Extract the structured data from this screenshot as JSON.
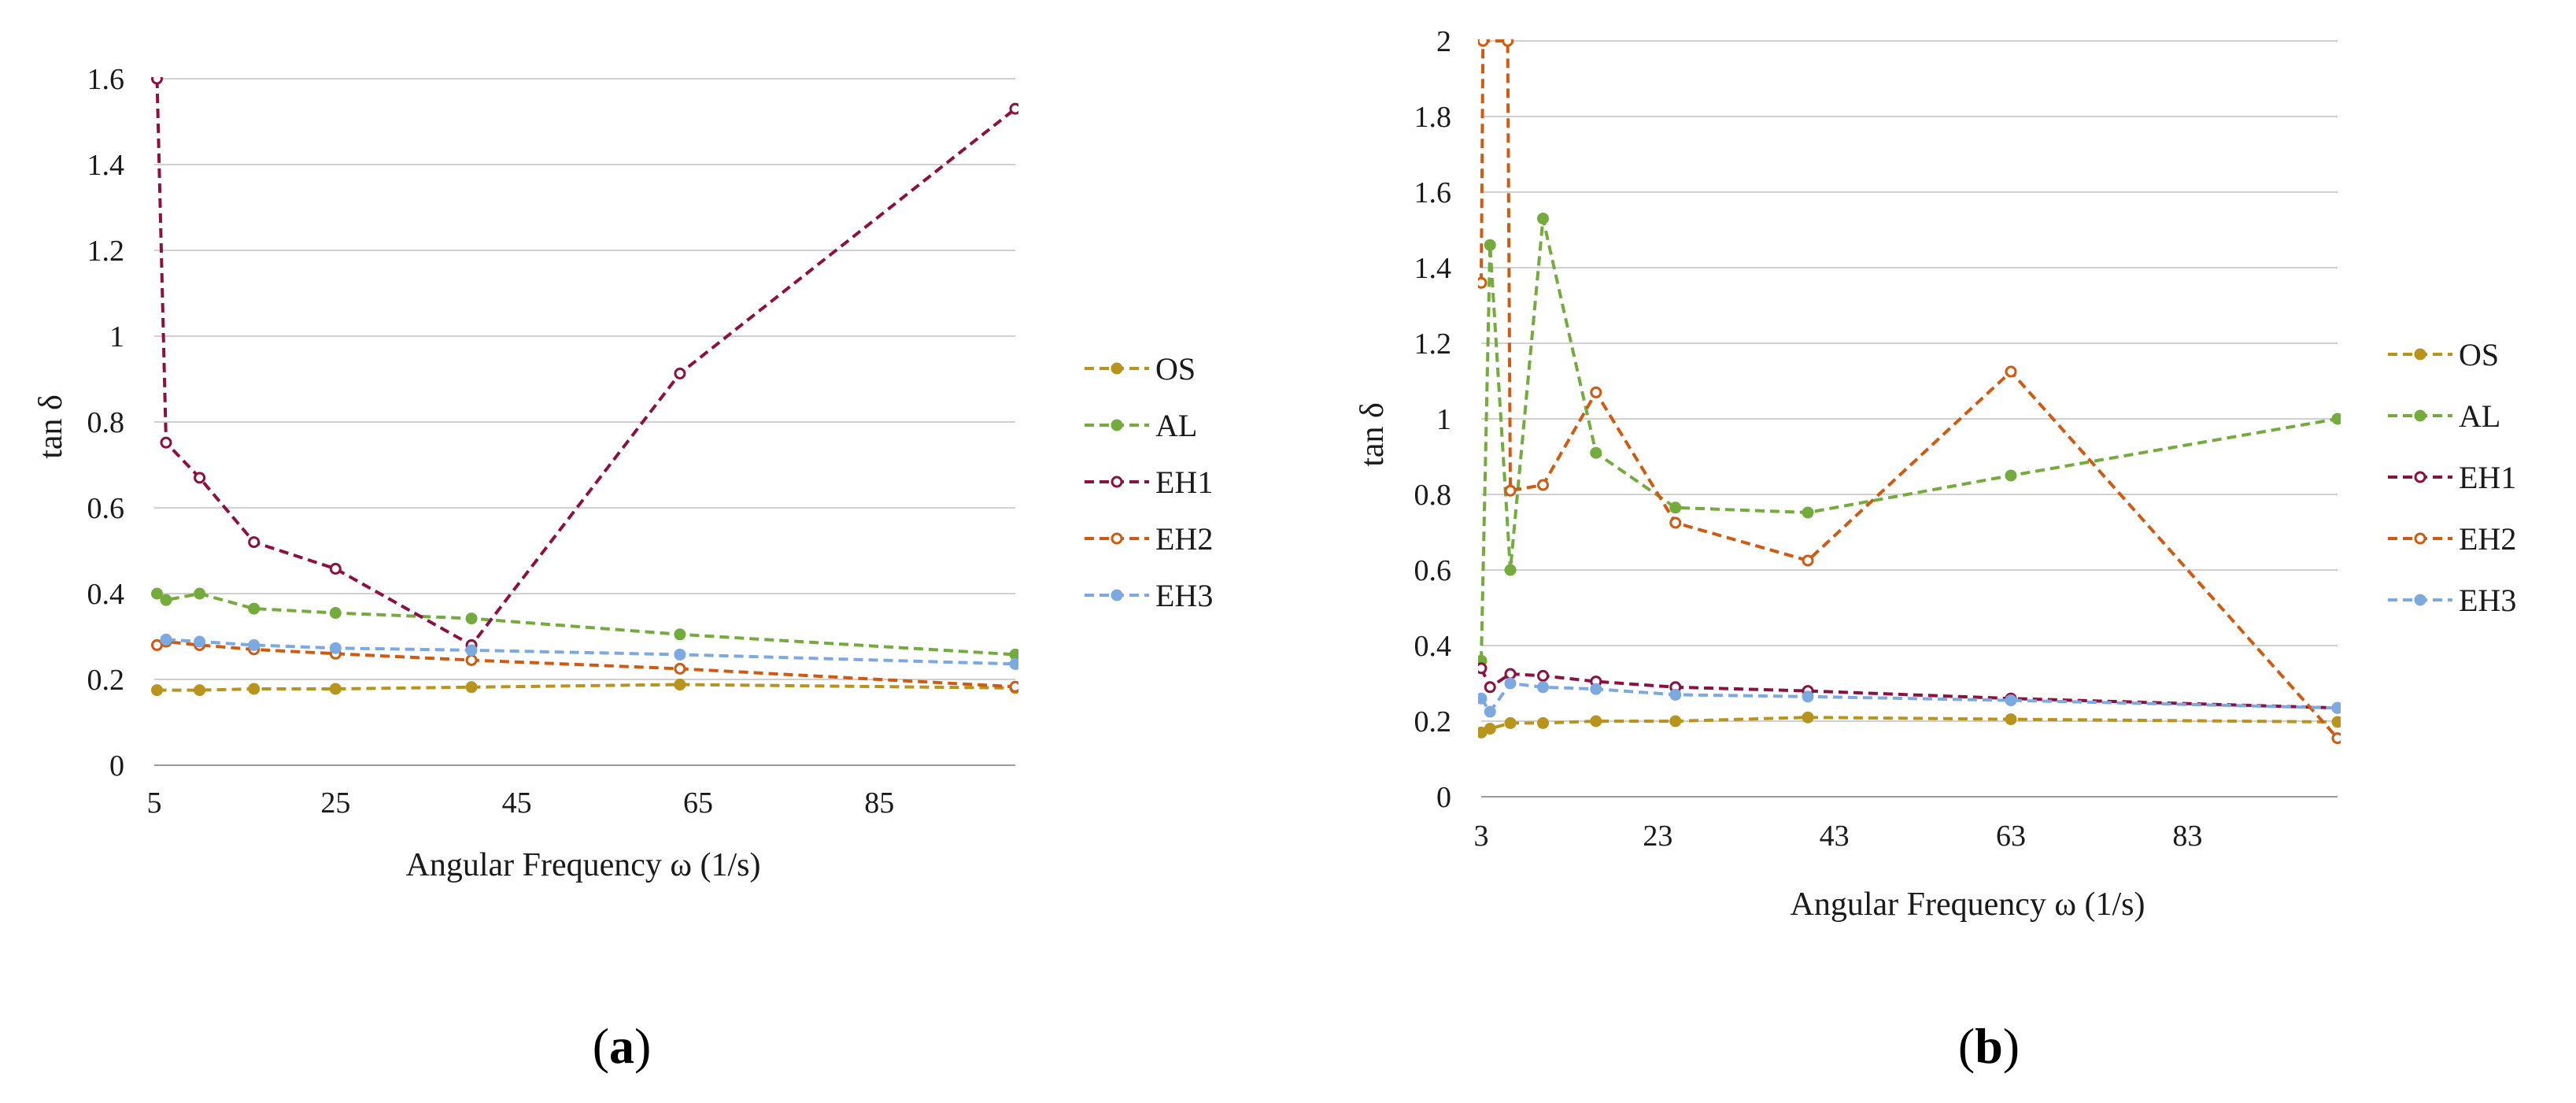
{
  "colors": {
    "OS": "#b8941c",
    "AL": "#73ab3c",
    "EH1": "#8c1140",
    "EH2": "#d05a10",
    "EH3": "#7ba9e0"
  },
  "chart_data": [
    {
      "type": "line",
      "panel_label": "a",
      "xlabel": "Angular Frequency  ω (1/s)",
      "ylabel": "tan δ",
      "xlim": [
        5,
        100
      ],
      "ylim": [
        0,
        1.6
      ],
      "xticks": [
        5,
        25,
        45,
        65,
        85
      ],
      "xtick_labels": [
        "5",
        "25",
        "45",
        "65",
        "85"
      ],
      "yticks": [
        0,
        0.2,
        0.4,
        0.6,
        0.8,
        1,
        1.2,
        1.4,
        1.6
      ],
      "ytick_labels": [
        "0",
        "0.2",
        "0.4",
        "0.6",
        "0.8",
        "1",
        "1.2",
        "1.4",
        "1.6"
      ],
      "grid": true,
      "legend": "right",
      "series": [
        {
          "name": "OS",
          "x": [
            5.3,
            10,
            16,
            25,
            40,
            63,
            100
          ],
          "y": [
            0.175,
            0.175,
            0.178,
            0.178,
            0.182,
            0.188,
            0.18
          ]
        },
        {
          "name": "AL",
          "x": [
            5.3,
            6.3,
            10,
            16,
            25,
            40,
            63,
            100
          ],
          "y": [
            0.4,
            0.385,
            0.4,
            0.365,
            0.355,
            0.342,
            0.305,
            0.258
          ]
        },
        {
          "name": "EH1",
          "x": [
            5.3,
            6.3,
            10,
            16,
            25,
            40,
            63,
            100
          ],
          "y": [
            1.6,
            0.752,
            0.67,
            0.52,
            0.458,
            0.28,
            0.913,
            1.53
          ]
        },
        {
          "name": "EH2",
          "x": [
            5.3,
            6.3,
            10,
            16,
            25,
            40,
            63,
            100
          ],
          "y": [
            0.28,
            0.288,
            0.28,
            0.27,
            0.26,
            0.245,
            0.225,
            0.183
          ]
        },
        {
          "name": "EH3",
          "x": [
            6.3,
            10,
            16,
            25,
            40,
            63,
            100
          ],
          "y": [
            0.293,
            0.288,
            0.28,
            0.273,
            0.268,
            0.258,
            0.236
          ]
        }
      ]
    },
    {
      "type": "line",
      "panel_label": "b",
      "xlabel": "Angular Frequency  ω (1/s)",
      "ylabel": "tan δ",
      "xlim": [
        3,
        100
      ],
      "ylim": [
        0,
        2
      ],
      "xticks": [
        3,
        23,
        43,
        63,
        83
      ],
      "xtick_labels": [
        "3",
        "23",
        "43",
        "63",
        "83"
      ],
      "yticks": [
        0,
        0.2,
        0.4,
        0.6,
        0.8,
        1,
        1.2,
        1.4,
        1.6,
        1.8,
        2
      ],
      "ytick_labels": [
        "0",
        "0.2",
        "0.4",
        "0.6",
        "0.8",
        "1",
        "1.2",
        "1.4",
        "1.6",
        "1.8",
        "2"
      ],
      "grid": true,
      "legend": "right",
      "series": [
        {
          "name": "OS",
          "x": [
            3,
            4,
            6.3,
            10,
            16,
            25,
            40,
            63,
            100
          ],
          "y": [
            0.17,
            0.18,
            0.195,
            0.195,
            0.2,
            0.2,
            0.21,
            0.205,
            0.198
          ]
        },
        {
          "name": "AL",
          "x": [
            3,
            4,
            6.3,
            10,
            16,
            25,
            40,
            63,
            100
          ],
          "y": [
            0.36,
            1.46,
            0.6,
            1.53,
            0.91,
            0.765,
            0.752,
            0.85,
            1.0
          ]
        },
        {
          "name": "EH1",
          "x": [
            3,
            4,
            6.3,
            10,
            16,
            25,
            40,
            63,
            100
          ],
          "y": [
            0.34,
            0.29,
            0.325,
            0.32,
            0.305,
            0.29,
            0.28,
            0.26,
            0.235
          ]
        },
        {
          "name": "EH2",
          "x": [
            3,
            3.2,
            6.0,
            6.3,
            10,
            16,
            25,
            40,
            63,
            100
          ],
          "y": [
            1.36,
            2.0,
            2.0,
            0.81,
            0.825,
            1.07,
            0.725,
            0.625,
            1.125,
            0.155
          ]
        },
        {
          "name": "EH3",
          "x": [
            3,
            4,
            6.3,
            10,
            16,
            25,
            40,
            63,
            100
          ],
          "y": [
            0.26,
            0.225,
            0.3,
            0.29,
            0.285,
            0.27,
            0.265,
            0.255,
            0.235
          ]
        }
      ]
    }
  ]
}
